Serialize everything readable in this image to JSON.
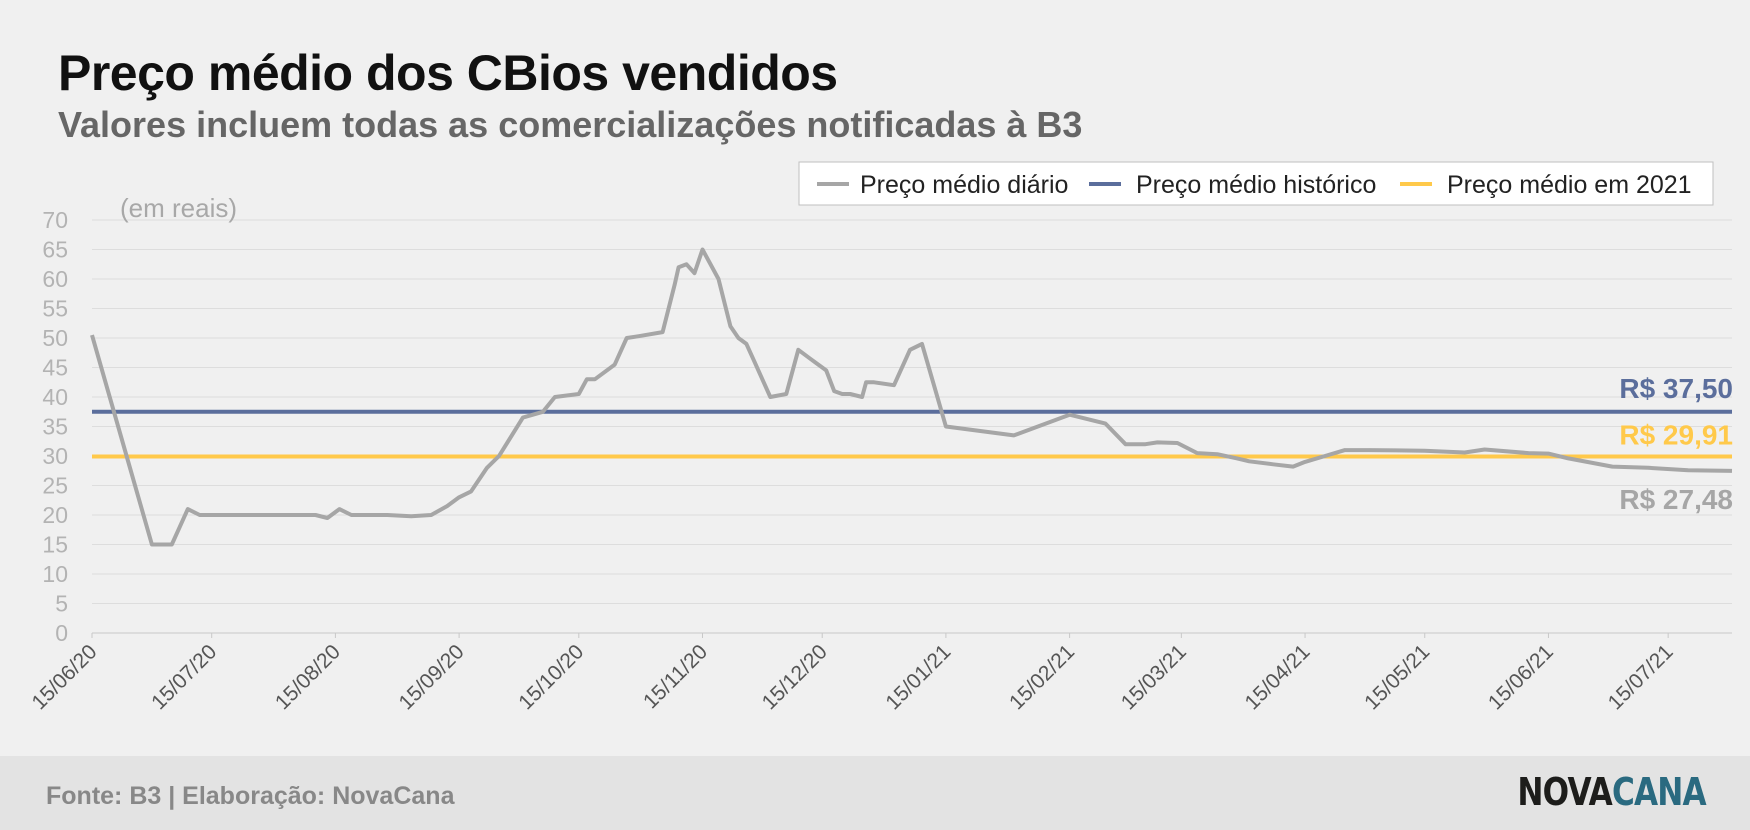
{
  "title": "Preço médio dos CBios vendidos",
  "subtitle": "Valores incluem todas as comercializações notificadas à B3",
  "footer": {
    "source": "Fonte: B3 | Elaboração: NovaCana",
    "brand_part1": "NOVA",
    "brand_part2": "CANA"
  },
  "colors": {
    "daily": "#a6a6a6",
    "historic": "#5b6e9c",
    "year2021": "#ffc94a",
    "grid": "#dddddd",
    "tick": "#b3b3b3"
  },
  "chart_data": {
    "type": "line",
    "unit_label": "(em reais)",
    "ylim": [
      0,
      70
    ],
    "yticks": [
      0,
      5,
      10,
      15,
      20,
      25,
      30,
      35,
      40,
      45,
      50,
      55,
      60,
      65,
      70
    ],
    "xlim": [
      "2020-06-15",
      "2021-07-31"
    ],
    "xticks": [
      "15/06/20",
      "15/07/20",
      "15/08/20",
      "15/09/20",
      "15/10/20",
      "15/11/20",
      "15/12/20",
      "15/01/21",
      "15/02/21",
      "15/03/21",
      "15/04/21",
      "15/05/21",
      "15/06/21",
      "15/07/21"
    ],
    "grid": true,
    "legend_position": "top-right",
    "series": [
      {
        "name": "Preço médio diário",
        "key": "daily",
        "x": [
          "2020-06-15",
          "2020-06-30",
          "2020-07-01",
          "2020-07-05",
          "2020-07-07",
          "2020-07-09",
          "2020-07-12",
          "2020-07-20",
          "2020-08-01",
          "2020-08-10",
          "2020-08-13",
          "2020-08-16",
          "2020-08-19",
          "2020-08-22",
          "2020-08-25",
          "2020-08-28",
          "2020-09-03",
          "2020-09-08",
          "2020-09-12",
          "2020-09-15",
          "2020-09-18",
          "2020-09-22",
          "2020-09-25",
          "2020-10-01",
          "2020-10-06",
          "2020-10-09",
          "2020-10-15",
          "2020-10-17",
          "2020-10-19",
          "2020-10-24",
          "2020-10-27",
          "2020-10-30",
          "2020-11-05",
          "2020-11-08",
          "2020-11-09",
          "2020-11-11",
          "2020-11-13",
          "2020-11-15",
          "2020-11-19",
          "2020-11-22",
          "2020-11-24",
          "2020-11-26",
          "2020-11-28",
          "2020-12-02",
          "2020-12-06",
          "2020-12-09",
          "2020-12-12",
          "2020-12-13",
          "2020-12-16",
          "2020-12-18",
          "2020-12-20",
          "2020-12-22",
          "2020-12-25",
          "2020-12-26",
          "2020-12-28",
          "2021-01-02",
          "2021-01-06",
          "2021-01-09",
          "2021-01-15",
          "2021-02-01",
          "2021-02-15",
          "2021-02-24",
          "2021-03-01",
          "2021-03-06",
          "2021-03-09",
          "2021-03-14",
          "2021-03-19",
          "2021-03-24",
          "2021-03-29",
          "2021-04-01",
          "2021-04-07",
          "2021-04-12",
          "2021-04-15",
          "2021-04-20",
          "2021-04-25",
          "2021-05-01",
          "2021-05-15",
          "2021-05-25",
          "2021-05-30",
          "2021-06-10",
          "2021-06-15",
          "2021-06-20",
          "2021-07-01",
          "2021-07-10",
          "2021-07-20",
          "2021-07-31"
        ],
        "values": [
          50.5,
          15,
          15,
          15,
          18,
          21,
          20,
          20,
          20,
          20,
          19.5,
          21,
          20,
          20,
          20,
          20,
          19.8,
          20,
          21.5,
          23,
          24,
          28,
          30,
          36.5,
          37.5,
          40,
          40.5,
          43,
          43,
          45.5,
          50,
          50.3,
          51,
          59,
          62,
          62.5,
          61,
          65,
          60,
          52,
          50,
          49,
          46,
          40,
          40.5,
          48,
          46.5,
          46,
          44.5,
          41,
          40.5,
          40.5,
          40,
          42.5,
          42.5,
          42,
          48,
          49,
          35,
          33.5,
          37,
          35.5,
          32,
          32,
          32.3,
          32.2,
          30.5,
          30.3,
          29.6,
          29.1,
          28.6,
          28.2,
          29,
          30,
          31,
          31,
          30.9,
          30.6,
          31.1,
          30.5,
          30.4,
          29.6,
          28.2,
          28,
          27.6,
          27.48
        ]
      },
      {
        "name": "Preço médio histórico",
        "key": "historic",
        "constant": 37.5,
        "label": "R$ 37,50"
      },
      {
        "name": "Preço médio em 2021",
        "key": "year2021",
        "constant": 29.91,
        "label": "R$ 29,91"
      }
    ],
    "last_value_label": "R$ 27,48"
  }
}
